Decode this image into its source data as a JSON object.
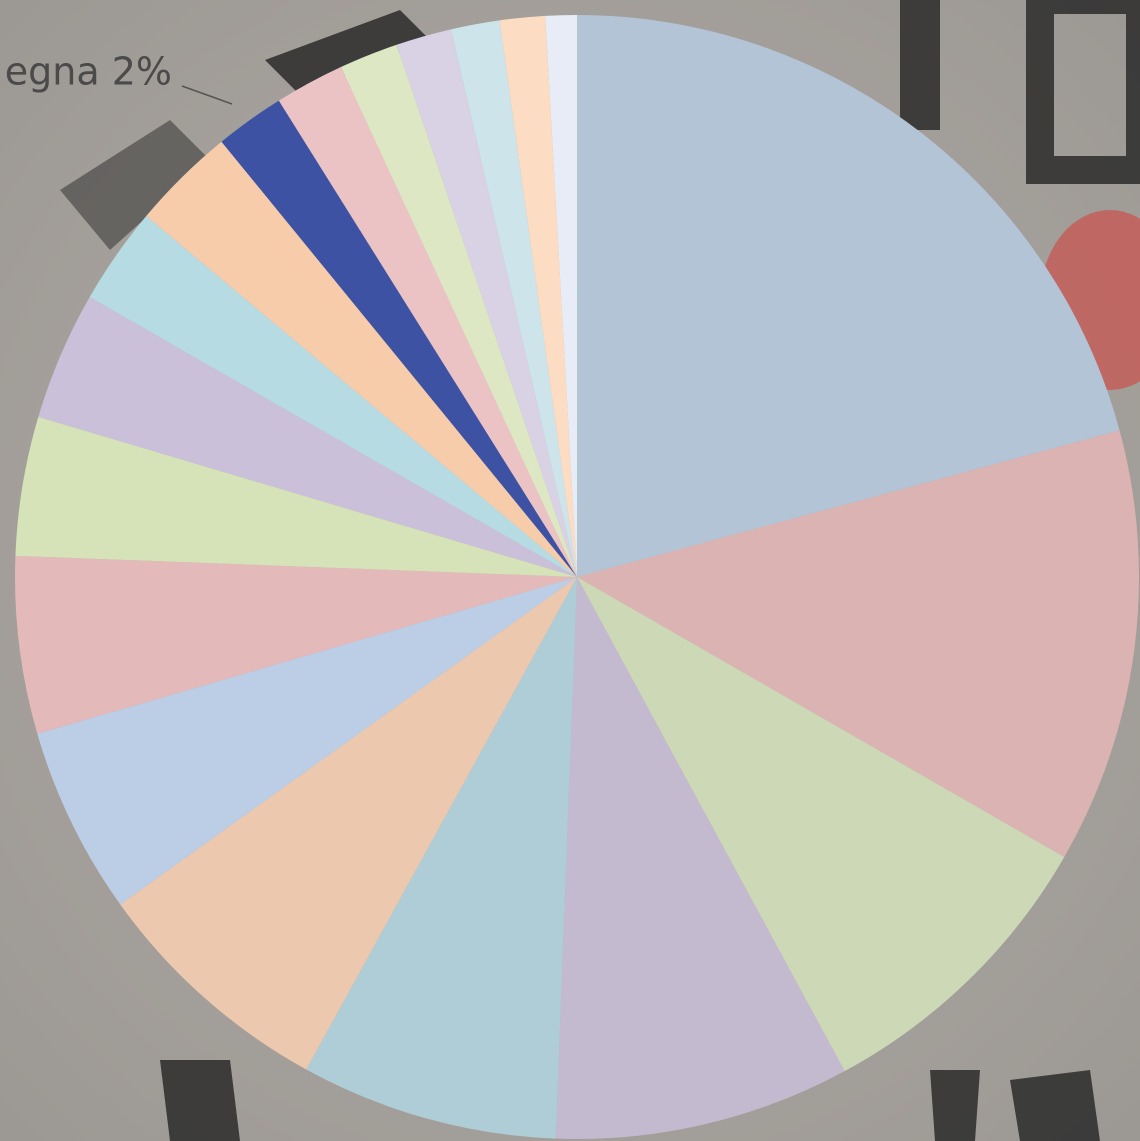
{
  "chart_data": {
    "type": "pie",
    "values": [
      20.8,
      12.5,
      8.8,
      8.5,
      7.4,
      7.1,
      5.4,
      5.1,
      4,
      3.7,
      2.8,
      3,
      2,
      2,
      1.7,
      1.6,
      1.4,
      1.3,
      0.9
    ],
    "value_labels": [
      null,
      null,
      null,
      null,
      null,
      null,
      null,
      null,
      null,
      null,
      null,
      null,
      "egna 2%",
      null,
      null,
      null,
      null,
      null,
      null
    ],
    "colors": [
      "#b3c4d6",
      "#dbb3b3",
      "#cdd8b6",
      "#c4bad0",
      "#afcdd6",
      "#ecc9ae",
      "#bccde6",
      "#e3b9ba",
      "#d6e2b8",
      "#cac0da",
      "#b7dbe2",
      "#f6ccaa",
      "#3e52a3",
      "#ebc3c5",
      "#dde7c3",
      "#d8d2e4",
      "#cce4ea",
      "#fcdcc2",
      "#e8ecf6"
    ]
  }
}
